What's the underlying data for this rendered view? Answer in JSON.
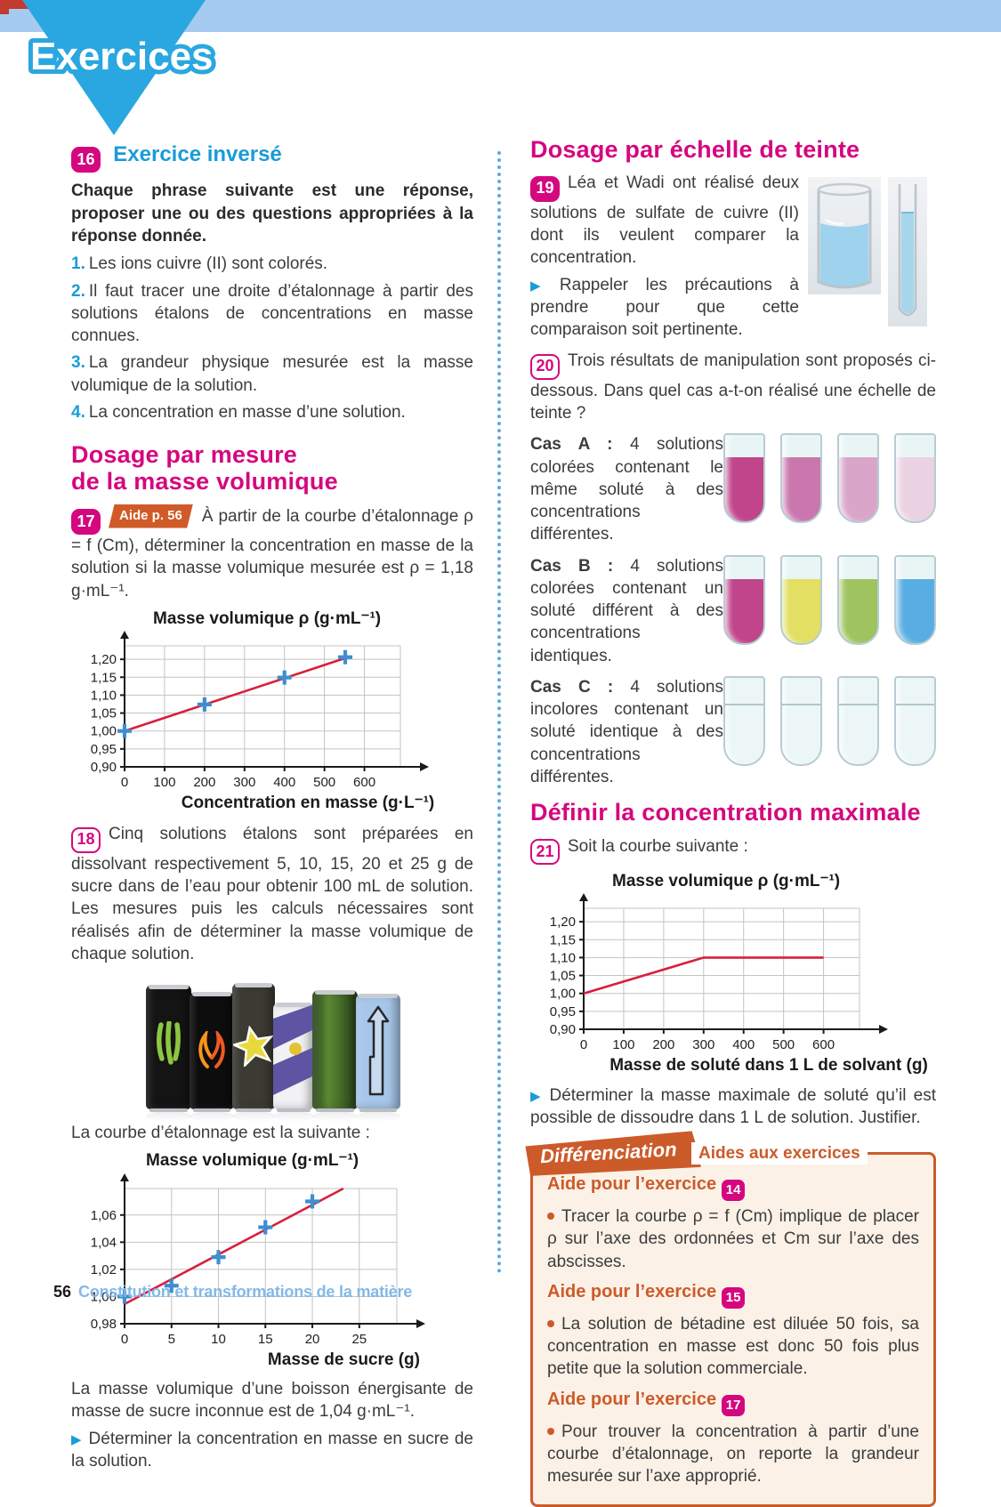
{
  "header": {
    "banner": "Exercices"
  },
  "footer": {
    "page_number": "56",
    "text": "Constitution et transformations de la matière"
  },
  "left": {
    "ex16": {
      "num": "16",
      "title": "Exercice inversé",
      "intro": "Chaque phrase suivante est une réponse, proposer une ou des questions appropriées à la réponse donnée.",
      "items": [
        {
          "num": "1.",
          "text": "Les ions cuivre (II) sont colorés."
        },
        {
          "num": "2.",
          "text": "Il faut tracer une droite d’étalonnage à partir des solutions étalons de concentrations en masse connues."
        },
        {
          "num": "3.",
          "text": "La grandeur physique mesurée est la masse volumique de la solution."
        },
        {
          "num": "4.",
          "text": "La concentration en masse d’une solution."
        }
      ]
    },
    "section_title_line1": "Dosage par mesure",
    "section_title_line2": "de la masse volumique",
    "ex17": {
      "num": "17",
      "aide_label": "Aide p. 56",
      "text": "À partir de la courbe d’étalonnage ρ = f (Cm), déterminer la concentration en masse de la solution si la masse volumique mesurée est ρ = 1,18 g·mL⁻¹."
    },
    "ex18": {
      "num": "18",
      "text": "Cinq solutions étalons sont préparées en dissolvant respectivement 5, 10, 15, 20 et 25 g de sucre dans de l’eau pour obtenir 100 mL de solution. Les mesures puis les calculs nécessaires sont réalisés afin de déterminer la masse volumique de chaque solution.",
      "caption": "La courbe d’étalonnage est la suivante :",
      "after_chart": "La masse volumique d’une boisson énergisante de masse de sucre inconnue est de 1,04 g·mL⁻¹.",
      "prompt": "Déterminer la concentration en masse en sucre de la solution."
    }
  },
  "right": {
    "section2_title": "Dosage par échelle de teinte",
    "ex19": {
      "num": "19",
      "text": "Léa et Wadi ont réalisé deux solutions de sulfate de cuivre (II) dont ils veulent comparer la concentration.",
      "prompt": "Rappeler les précautions à prendre pour que cette comparaison soit pertinente."
    },
    "ex20": {
      "num": "20",
      "intro": "Trois résultats de manipulation sont proposés ci-dessous. Dans quel cas a-t-on réalisé une échelle de teinte ?",
      "casA_label": "Cas A :",
      "casA_text": "4 solutions colorées contenant le même soluté à des concentrations différentes.",
      "casB_label": "Cas B :",
      "casB_text": "4 solutions colorées contenant un soluté différent à des concentrations identiques.",
      "casC_label": "Cas C :",
      "casC_text": "4 solutions incolores contenant un soluté identique à des concentrations différentes."
    },
    "section3_title": "Définir la concentration maximale",
    "ex21": {
      "num": "21",
      "lead": "Soit la courbe suivante :",
      "prompt": "Déterminer la masse maximale de soluté qu’il est possible de dissoudre dans 1 L de solution. Justifier."
    },
    "diff": {
      "banner": "Différenciation",
      "side_label": "Aides aux exercices",
      "aides": [
        {
          "head": "Aide pour l’exercice",
          "num": "14",
          "text": "Tracer la courbe ρ = f (Cm) implique de placer ρ sur l’axe des ordonnées et Cm sur l’axe des abscisses."
        },
        {
          "head": "Aide pour l’exercice",
          "num": "15",
          "text": "La solution de bétadine est diluée 50 fois, sa concentration en masse est donc 50 fois plus petite que la solution commerciale."
        },
        {
          "head": "Aide pour l’exercice",
          "num": "17",
          "text": "Pour trouver la concentration à partir d’une courbe d’étalonnage, on reporte la grandeur mesurée sur l’axe approprié."
        }
      ]
    }
  },
  "colors": {
    "magenta": "#d5077f",
    "blue": "#1a9cd8",
    "orange": "#cc5b2a",
    "chart_line_red": "#d81f3d",
    "chart_marker_blue": "#3e8ed0",
    "tubes_casA": [
      "#c0458b",
      "#ca77ad",
      "#d9a6ca",
      "#ead2e3"
    ],
    "tubes_casB": [
      "#c0458b",
      "#e2df63",
      "#9fc35e",
      "#58aee2"
    ],
    "tubes_casC": [
      "#ecf6f6",
      "#ecf6f6",
      "#ecf6f6",
      "#ecf6f6"
    ]
  },
  "chart_data": [
    {
      "id": "chart17",
      "type": "line",
      "title": "Masse volumique ρ (g·mL⁻¹)",
      "xlabel": "Concentration en masse (g·L⁻¹)",
      "x_ticks": [
        0,
        100,
        200,
        300,
        400,
        500,
        600
      ],
      "y_ticks": [
        0.9,
        0.95,
        1.0,
        1.05,
        1.1,
        1.15,
        1.2
      ],
      "xlim": [
        0,
        690
      ],
      "ylim": [
        0.9,
        1.2375
      ],
      "y_decimals": 2,
      "grid": true,
      "marker": "plus",
      "points": [
        [
          0,
          1.0
        ],
        [
          200,
          1.074
        ],
        [
          400,
          1.149
        ],
        [
          552,
          1.206
        ]
      ],
      "line": [
        [
          0,
          1.0
        ],
        [
          565,
          1.208
        ]
      ]
    },
    {
      "id": "chart18",
      "type": "line",
      "title": "Masse volumique (g·mL⁻¹)",
      "xlabel": "Masse de sucre (g)",
      "x_ticks": [
        0,
        5,
        10,
        15,
        20,
        25
      ],
      "y_ticks": [
        0.98,
        1.0,
        1.02,
        1.04,
        1.06
      ],
      "xlim": [
        0,
        29
      ],
      "ylim": [
        0.98,
        1.0795
      ],
      "y_decimals": 2,
      "grid": true,
      "marker": "plus",
      "points": [
        [
          0,
          1.0
        ],
        [
          5,
          1.008
        ],
        [
          10,
          1.029
        ],
        [
          15,
          1.051
        ],
        [
          20,
          1.07
        ]
      ],
      "line": [
        [
          0,
          0.9945
        ],
        [
          23.3,
          1.0795
        ]
      ]
    },
    {
      "id": "chart21",
      "type": "line",
      "title": "Masse volumique ρ (g·mL⁻¹)",
      "xlabel": "Masse de soluté dans 1 L de solvant (g)",
      "x_ticks": [
        0,
        100,
        200,
        300,
        400,
        500,
        600
      ],
      "y_ticks": [
        0.9,
        0.95,
        1.0,
        1.05,
        1.1,
        1.15,
        1.2
      ],
      "xlim": [
        0,
        690
      ],
      "ylim": [
        0.9,
        1.2375
      ],
      "y_decimals": 2,
      "grid": true,
      "marker": "none",
      "points": [],
      "line": [
        [
          0,
          1.0
        ],
        [
          300,
          1.1
        ],
        [
          600,
          1.1
        ]
      ]
    }
  ]
}
